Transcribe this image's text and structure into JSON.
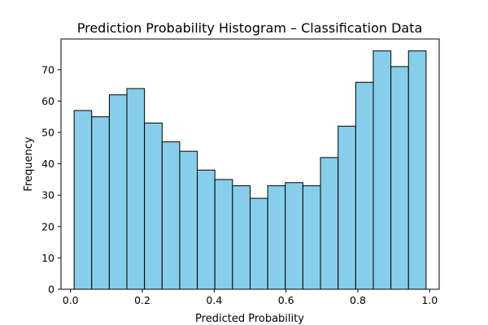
{
  "chart_data": {
    "type": "bar",
    "title": "Prediction Probability Histogram – Classification Data",
    "xlabel": "Predicted Probability",
    "ylabel": "Frequency",
    "bin_edges": [
      0.01,
      0.059,
      0.108,
      0.157,
      0.206,
      0.255,
      0.304,
      0.353,
      0.402,
      0.451,
      0.5,
      0.549,
      0.598,
      0.647,
      0.696,
      0.745,
      0.794,
      0.843,
      0.892,
      0.941,
      0.99
    ],
    "values": [
      57,
      55,
      62,
      64,
      53,
      47,
      44,
      38,
      35,
      33,
      29,
      33,
      34,
      33,
      42,
      52,
      66,
      76,
      71,
      76
    ],
    "xlim": [
      -0.0265,
      1.0265
    ],
    "ylim": [
      0,
      79.8
    ],
    "xticks": [
      0.0,
      0.2,
      0.4,
      0.6,
      0.8,
      1.0
    ],
    "xtick_labels": [
      "0.0",
      "0.2",
      "0.4",
      "0.6",
      "0.8",
      "1.0"
    ],
    "yticks": [
      0,
      10,
      20,
      30,
      40,
      50,
      60,
      70
    ],
    "ytick_labels": [
      "0",
      "10",
      "20",
      "30",
      "40",
      "50",
      "60",
      "70"
    ],
    "bar_color": "#87ceeb",
    "edge_color": "#000000",
    "grid": false,
    "legend": "none"
  }
}
